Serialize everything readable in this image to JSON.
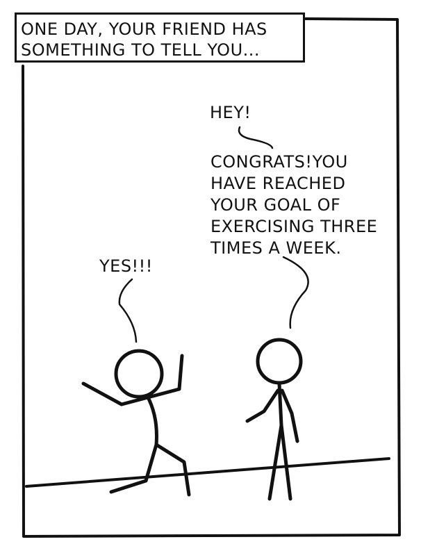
{
  "panel": {
    "caption_line1": "ONE DAY, YOUR FRIEND HAS",
    "caption_line2": "SOMETHING TO TELL YOU..."
  },
  "dialogue": {
    "hey": "HEY!",
    "congrats_lines": [
      "CONGRATS!YOU",
      "HAVE REACHED",
      "YOUR GOAL OF",
      "EXERCISING THREE",
      "TIMES A WEEK."
    ],
    "yes": "YES!!!"
  },
  "colors": {
    "ink": "#111111",
    "background": "#ffffff"
  }
}
